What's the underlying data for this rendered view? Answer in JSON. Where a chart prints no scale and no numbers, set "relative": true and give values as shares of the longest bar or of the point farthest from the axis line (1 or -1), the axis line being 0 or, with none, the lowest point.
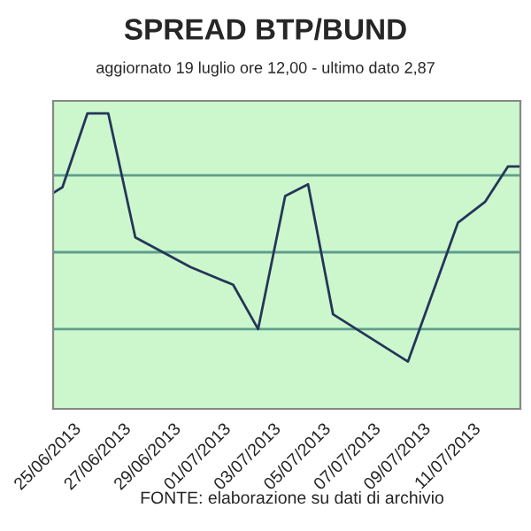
{
  "chart_data": {
    "type": "line",
    "title": "SPREAD BTP/BUND",
    "subtitle": "aggiornato 19 luglio ore 12,00 - ultimo dato 2,87",
    "relative": true,
    "marker": "none",
    "ref_lines": [
      {
        "axis": "y",
        "value": 0.27,
        "color": "#5f9e8c"
      },
      {
        "axis": "y",
        "value": 0.53,
        "color": "#5f9e8c"
      },
      {
        "axis": "y",
        "value": 0.79,
        "color": "#5f9e8c"
      }
    ],
    "line_style": "solid",
    "tick_labels": "x",
    "x": [
      "2013-06-24T05:00",
      "2013-06-24T14:00",
      "2013-06-25T14:00",
      "2013-06-26T10:00",
      "2013-06-27T12:00",
      "2013-06-29T17:00",
      "2013-07-01T10:00",
      "2013-07-02T10:00",
      "2013-07-03T12:00",
      "2013-07-04T10:00",
      "2013-07-05T10:00",
      "2013-07-08T10:00",
      "2013-07-10T10:00",
      "2013-07-11T12:00",
      "2013-07-12T10:00",
      "2013-07-12T22:00"
    ],
    "series": [
      {
        "color": "#24365a",
        "values": [
          0.73,
          0.75,
          1.0,
          1.0,
          0.58,
          0.48,
          0.42,
          0.27,
          0.72,
          0.76,
          0.32,
          0.16,
          0.63,
          0.7,
          0.82,
          0.82
        ]
      }
    ],
    "xlim": [
      "2013-06-24T05:00",
      "2013-07-12T22:00"
    ],
    "xticks": [
      {
        "value": "2013-06-25",
        "label": "25/06/2013"
      },
      {
        "value": "2013-06-27",
        "label": "27/06/2013"
      },
      {
        "value": "2013-06-29",
        "label": "29/06/2013"
      },
      {
        "value": "2013-07-01",
        "label": "01/07/2013"
      },
      {
        "value": "2013-07-03",
        "label": "03/07/2013"
      },
      {
        "value": "2013-07-05",
        "label": "05/07/2013"
      },
      {
        "value": "2013-07-07",
        "label": "07/07/2013"
      },
      {
        "value": "2013-07-09",
        "label": "09/07/2013"
      },
      {
        "value": "2013-07-11",
        "label": "11/07/2013"
      }
    ],
    "annotations": [
      "FONTE: elaborazione su dati di archivio"
    ]
  }
}
